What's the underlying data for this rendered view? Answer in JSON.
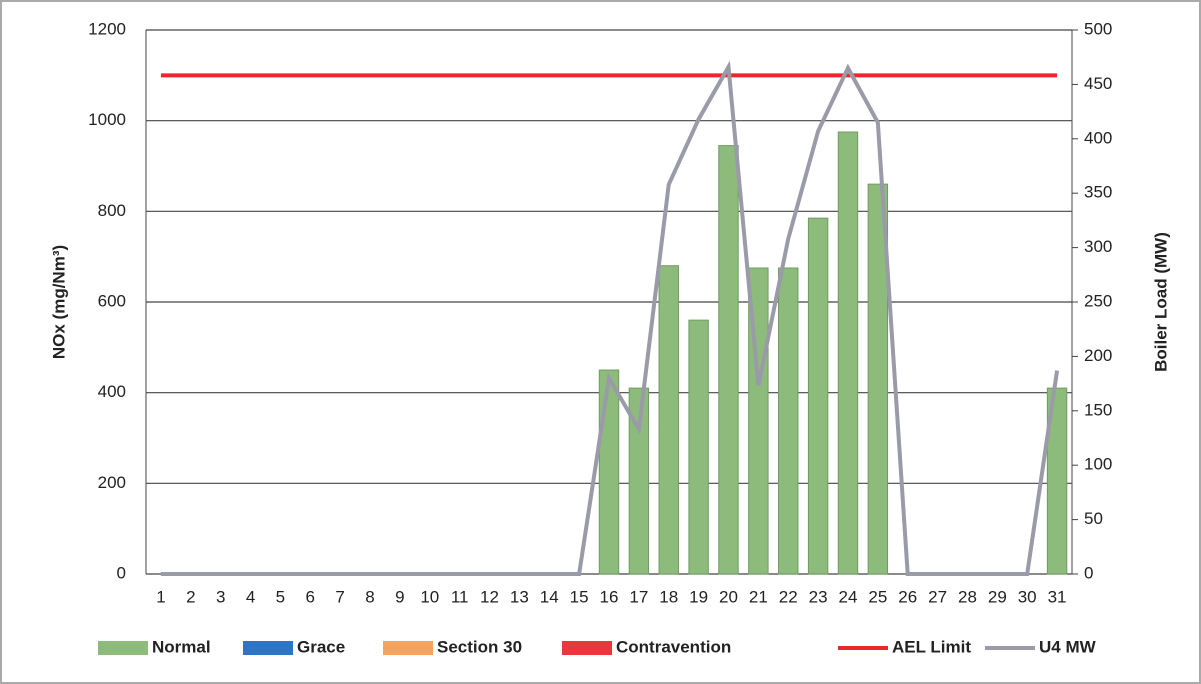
{
  "chart_data": {
    "type": "bar",
    "categories": [
      "1",
      "2",
      "3",
      "4",
      "5",
      "6",
      "7",
      "8",
      "9",
      "10",
      "11",
      "12",
      "13",
      "14",
      "15",
      "16",
      "17",
      "18",
      "19",
      "20",
      "21",
      "22",
      "23",
      "24",
      "25",
      "26",
      "27",
      "28",
      "29",
      "30",
      "31"
    ],
    "series": [
      {
        "name": "Normal",
        "color": "#8dbb7c",
        "values": [
          0,
          0,
          0,
          0,
          0,
          0,
          0,
          0,
          0,
          0,
          0,
          0,
          0,
          0,
          0,
          450,
          410,
          680,
          560,
          945,
          675,
          675,
          785,
          975,
          860,
          0,
          0,
          0,
          0,
          0,
          410
        ]
      },
      {
        "name": "Grace",
        "color": "#2e75c6",
        "values": [
          0,
          0,
          0,
          0,
          0,
          0,
          0,
          0,
          0,
          0,
          0,
          0,
          0,
          0,
          0,
          0,
          0,
          0,
          0,
          0,
          0,
          0,
          0,
          0,
          0,
          0,
          0,
          0,
          0,
          0,
          0
        ]
      },
      {
        "name": "Section 30",
        "color": "#f4a460",
        "values": [
          0,
          0,
          0,
          0,
          0,
          0,
          0,
          0,
          0,
          0,
          0,
          0,
          0,
          0,
          0,
          0,
          0,
          0,
          0,
          0,
          0,
          0,
          0,
          0,
          0,
          0,
          0,
          0,
          0,
          0,
          0
        ]
      },
      {
        "name": "Contravention",
        "color": "#e8383d",
        "values": [
          0,
          0,
          0,
          0,
          0,
          0,
          0,
          0,
          0,
          0,
          0,
          0,
          0,
          0,
          0,
          0,
          0,
          0,
          0,
          0,
          0,
          0,
          0,
          0,
          0,
          0,
          0,
          0,
          0,
          0,
          0
        ]
      },
      {
        "name": "AEL Limit",
        "type": "line",
        "color": "#e8282d",
        "values": [
          1100,
          1100,
          1100,
          1100,
          1100,
          1100,
          1100,
          1100,
          1100,
          1100,
          1100,
          1100,
          1100,
          1100,
          1100,
          1100,
          1100,
          1100,
          1100,
          1100,
          1100,
          1100,
          1100,
          1100,
          1100,
          1100,
          1100,
          1100,
          1100,
          1100,
          1100
        ]
      },
      {
        "name": "U4 MW",
        "type": "line",
        "axis": "y2",
        "color": "#9a9aa8",
        "values": [
          0,
          0,
          0,
          0,
          0,
          0,
          0,
          0,
          0,
          0,
          0,
          0,
          0,
          0,
          0,
          180,
          133,
          358,
          418,
          466,
          173,
          308,
          407,
          465,
          415,
          0,
          0,
          0,
          0,
          0,
          187
        ]
      }
    ],
    "y_label": "NOx (mg/Nm³)",
    "y2_label": "Boiler Load (MW)",
    "ylim": [
      0,
      1200
    ],
    "yticks": [
      0,
      200,
      400,
      600,
      800,
      1000,
      1200
    ],
    "y2lim": [
      0,
      500
    ],
    "y2ticks": [
      0,
      50,
      100,
      150,
      200,
      250,
      300,
      350,
      400,
      450,
      500
    ],
    "grid": true,
    "legend": "bottom"
  }
}
